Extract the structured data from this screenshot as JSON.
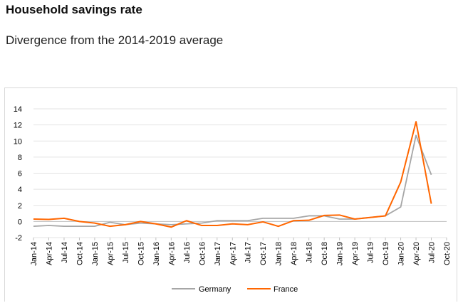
{
  "title": "Household savings rate",
  "subtitle": "Divergence from the 2014-2019 average",
  "colors": {
    "Germany": "#a6a6a6",
    "France": "#ff6600",
    "grid": "#e3e3e3",
    "axis": "#bfbfbf"
  },
  "chart_data": {
    "type": "line",
    "x": [
      "Jan-14",
      "Apr-14",
      "Jul-14",
      "Oct-14",
      "Jan-15",
      "Apr-15",
      "Jul-15",
      "Oct-15",
      "Jan-16",
      "Apr-16",
      "Jul-16",
      "Oct-16",
      "Jan-17",
      "Apr-17",
      "Jul-17",
      "Oct-17",
      "Jan-18",
      "Apr-18",
      "Jul-18",
      "Oct-18",
      "Jan-19",
      "Apr-19",
      "Jul-19",
      "Oct-19",
      "Jan-20",
      "Apr-20",
      "Jul-20",
      "Oct-20"
    ],
    "ylim": [
      -2,
      14
    ],
    "yticks": [
      -2,
      0,
      2,
      4,
      6,
      8,
      10,
      12,
      14
    ],
    "grid": true,
    "legend_position": "bottom",
    "series": [
      {
        "name": "Germany",
        "values": [
          -0.6,
          -0.5,
          -0.6,
          -0.6,
          -0.6,
          -0.1,
          -0.4,
          -0.2,
          -0.3,
          -0.4,
          -0.3,
          -0.2,
          0.1,
          0.1,
          0.1,
          0.4,
          0.4,
          0.4,
          0.7,
          0.7,
          0.3,
          0.3,
          0.5,
          0.7,
          1.8,
          10.7,
          5.8,
          null
        ]
      },
      {
        "name": "France",
        "values": [
          0.3,
          0.25,
          0.4,
          0.0,
          -0.2,
          -0.6,
          -0.4,
          0.0,
          -0.3,
          -0.7,
          0.1,
          -0.5,
          -0.5,
          -0.3,
          -0.4,
          -0.05,
          -0.6,
          0.1,
          0.15,
          0.75,
          0.8,
          0.3,
          0.5,
          0.7,
          4.9,
          12.4,
          2.2,
          null
        ]
      }
    ]
  }
}
